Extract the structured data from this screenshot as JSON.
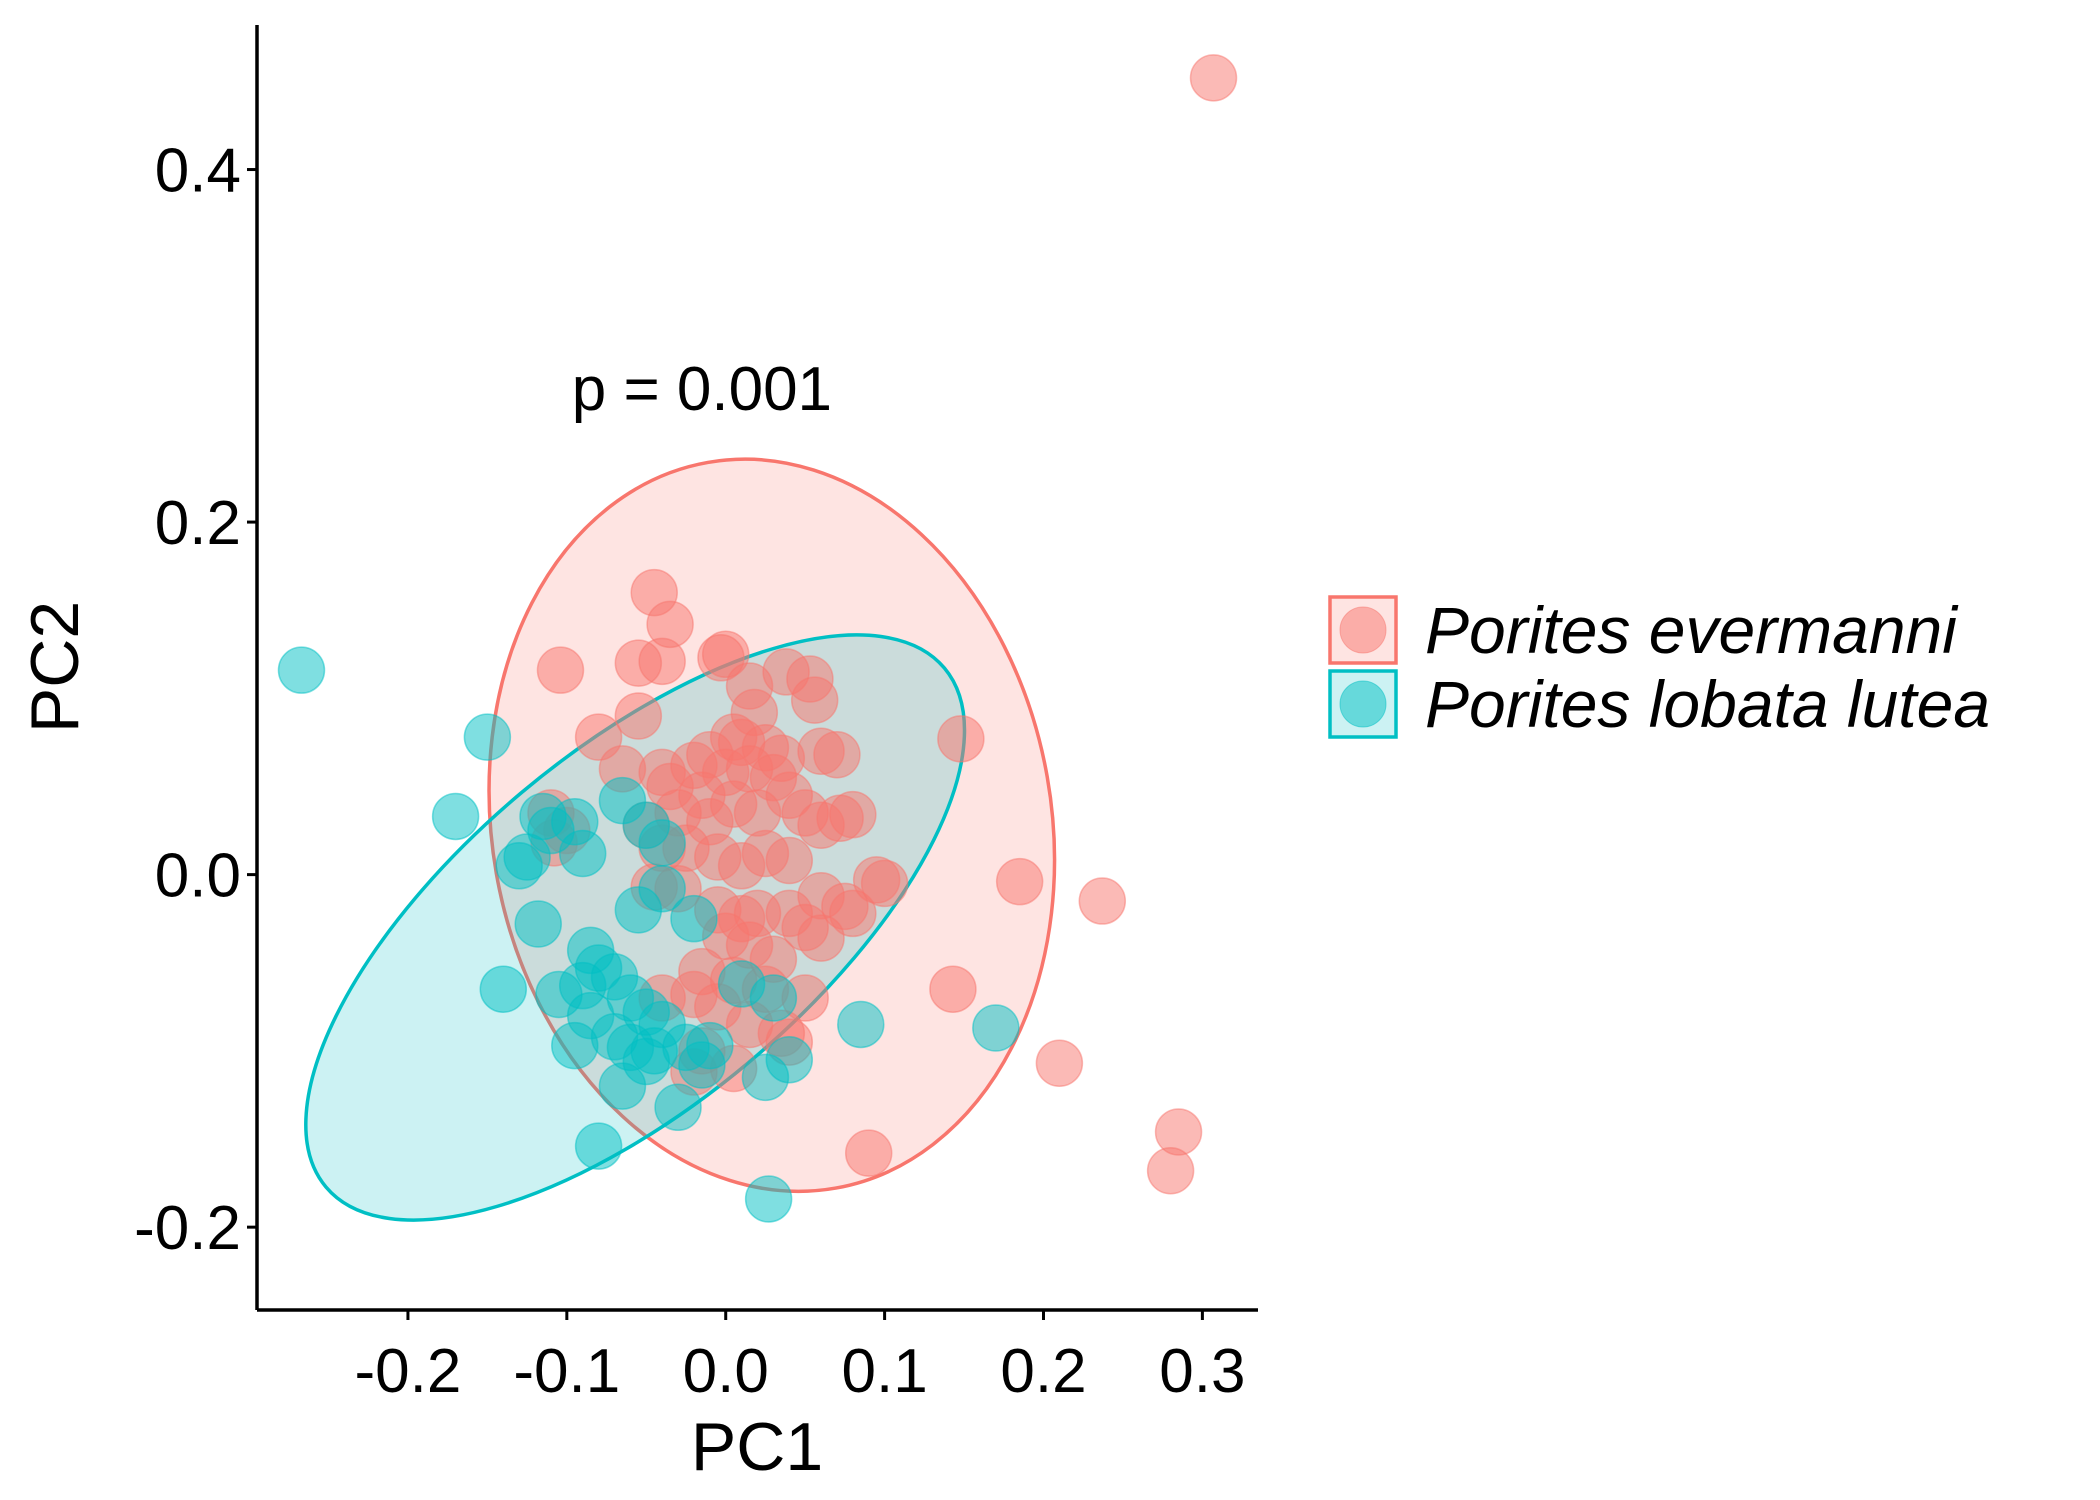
{
  "chart_data": {
    "type": "scatter",
    "xlabel": "PC1",
    "ylabel": "PC2",
    "xlim": [
      -0.295,
      0.335
    ],
    "ylim": [
      -0.247,
      0.482
    ],
    "x_ticks": [
      -0.2,
      -0.1,
      0.0,
      0.1,
      0.2,
      0.3
    ],
    "x_tick_labels": [
      "-0.2",
      "-0.1",
      "0.0",
      "0.1",
      "0.2",
      "0.3"
    ],
    "y_ticks": [
      -0.2,
      0.0,
      0.2,
      0.4
    ],
    "y_tick_labels": [
      "-0.2",
      "0.0",
      "0.2",
      "0.4"
    ],
    "grid": false,
    "legend_position": "right",
    "annotation": {
      "text": "p = 0.001",
      "x": -0.015,
      "y": 0.275
    },
    "series": [
      {
        "name": "Porites evermanni",
        "color": "#F8766D",
        "points": [
          [
            0.307,
            0.452
          ],
          [
            -0.045,
            0.16
          ],
          [
            -0.035,
            0.142
          ],
          [
            -0.104,
            0.116
          ],
          [
            -0.04,
            0.121
          ],
          [
            -0.055,
            0.12
          ],
          [
            -0.003,
            0.123
          ],
          [
            0.0,
            0.125
          ],
          [
            0.015,
            0.107
          ],
          [
            0.038,
            0.115
          ],
          [
            0.053,
            0.111
          ],
          [
            0.056,
            0.099
          ],
          [
            -0.055,
            0.09
          ],
          [
            0.018,
            0.092
          ],
          [
            0.01,
            0.075
          ],
          [
            0.005,
            0.078
          ],
          [
            0.025,
            0.072
          ],
          [
            0.035,
            0.066
          ],
          [
            0.06,
            0.07
          ],
          [
            0.07,
            0.068
          ],
          [
            0.148,
            0.077
          ],
          [
            -0.08,
            0.078
          ],
          [
            -0.065,
            0.06
          ],
          [
            -0.04,
            0.058
          ],
          [
            -0.035,
            0.05
          ],
          [
            -0.02,
            0.062
          ],
          [
            -0.01,
            0.068
          ],
          [
            0.0,
            0.058
          ],
          [
            0.015,
            0.06
          ],
          [
            0.03,
            0.055
          ],
          [
            0.04,
            0.045
          ],
          [
            0.05,
            0.035
          ],
          [
            0.06,
            0.028
          ],
          [
            0.072,
            0.032
          ],
          [
            0.08,
            0.034
          ],
          [
            -0.015,
            0.045
          ],
          [
            -0.01,
            0.03
          ],
          [
            0.005,
            0.04
          ],
          [
            0.02,
            0.035
          ],
          [
            -0.03,
            0.035
          ],
          [
            -0.05,
            0.028
          ],
          [
            -0.11,
            0.035
          ],
          [
            -0.1,
            0.025
          ],
          [
            -0.108,
            0.018
          ],
          [
            -0.04,
            0.015
          ],
          [
            -0.025,
            0.015
          ],
          [
            -0.005,
            0.01
          ],
          [
            0.01,
            0.005
          ],
          [
            0.025,
            0.012
          ],
          [
            0.04,
            0.008
          ],
          [
            0.06,
            -0.012
          ],
          [
            0.075,
            -0.018
          ],
          [
            0.08,
            -0.022
          ],
          [
            0.095,
            -0.003
          ],
          [
            0.1,
            -0.005
          ],
          [
            0.185,
            -0.004
          ],
          [
            0.237,
            -0.015
          ],
          [
            -0.045,
            -0.007
          ],
          [
            -0.03,
            -0.008
          ],
          [
            -0.005,
            -0.02
          ],
          [
            0.01,
            -0.025
          ],
          [
            0.02,
            -0.022
          ],
          [
            0.04,
            -0.022
          ],
          [
            0.05,
            -0.03
          ],
          [
            0.0,
            -0.035
          ],
          [
            0.015,
            -0.04
          ],
          [
            0.06,
            -0.036
          ],
          [
            0.03,
            -0.048
          ],
          [
            -0.015,
            -0.055
          ],
          [
            0.005,
            -0.06
          ],
          [
            0.025,
            -0.065
          ],
          [
            -0.04,
            -0.07
          ],
          [
            -0.02,
            -0.068
          ],
          [
            0.05,
            -0.07
          ],
          [
            -0.005,
            -0.075
          ],
          [
            0.015,
            -0.085
          ],
          [
            -0.015,
            -0.1
          ],
          [
            0.04,
            -0.095
          ],
          [
            0.143,
            -0.065
          ],
          [
            0.21,
            -0.107
          ],
          [
            0.285,
            -0.146
          ],
          [
            0.28,
            -0.168
          ],
          [
            0.09,
            -0.158
          ],
          [
            -0.02,
            -0.112
          ],
          [
            0.005,
            -0.11
          ],
          [
            0.035,
            -0.09
          ]
        ],
        "ellipse": {
          "cx": 0.029,
          "cy": 0.028,
          "rx": 0.176,
          "ry": 0.209,
          "angle_deg": 10
        }
      },
      {
        "name": "Porites lobata lutea",
        "color": "#00BFC4",
        "points": [
          [
            -0.267,
            0.116
          ],
          [
            -0.15,
            0.078
          ],
          [
            -0.17,
            0.033
          ],
          [
            -0.115,
            0.033
          ],
          [
            -0.11,
            0.025
          ],
          [
            -0.095,
            0.03
          ],
          [
            -0.125,
            0.01
          ],
          [
            -0.13,
            0.005
          ],
          [
            -0.09,
            0.012
          ],
          [
            -0.065,
            0.042
          ],
          [
            -0.05,
            0.028
          ],
          [
            -0.04,
            0.018
          ],
          [
            -0.118,
            -0.028
          ],
          [
            -0.055,
            -0.02
          ],
          [
            -0.04,
            -0.008
          ],
          [
            -0.02,
            -0.025
          ],
          [
            -0.085,
            -0.043
          ],
          [
            -0.08,
            -0.053
          ],
          [
            -0.09,
            -0.063
          ],
          [
            -0.14,
            -0.065
          ],
          [
            -0.105,
            -0.068
          ],
          [
            -0.07,
            -0.058
          ],
          [
            -0.06,
            -0.07
          ],
          [
            -0.085,
            -0.08
          ],
          [
            -0.05,
            -0.078
          ],
          [
            -0.04,
            -0.085
          ],
          [
            -0.07,
            -0.092
          ],
          [
            -0.06,
            -0.098
          ],
          [
            -0.045,
            -0.1
          ],
          [
            -0.05,
            -0.106
          ],
          [
            -0.095,
            -0.097
          ],
          [
            -0.025,
            -0.098
          ],
          [
            -0.01,
            -0.097
          ],
          [
            -0.065,
            -0.12
          ],
          [
            -0.03,
            -0.132
          ],
          [
            0.01,
            -0.062
          ],
          [
            0.03,
            -0.07
          ],
          [
            0.085,
            -0.085
          ],
          [
            0.17,
            -0.087
          ],
          [
            0.04,
            -0.105
          ],
          [
            0.025,
            -0.115
          ],
          [
            -0.08,
            -0.154
          ],
          [
            0.027,
            -0.184
          ],
          [
            -0.015,
            -0.108
          ]
        ],
        "ellipse": {
          "cx": -0.057,
          "cy": -0.03,
          "rx": 0.111,
          "ry": 0.229,
          "angle_deg": -50
        }
      }
    ]
  }
}
